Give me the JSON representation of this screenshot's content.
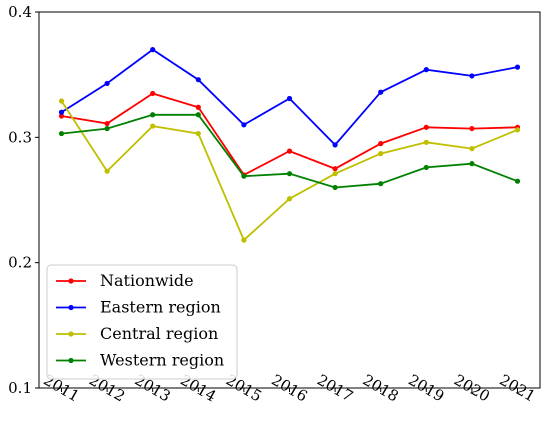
{
  "chart_data": {
    "type": "line",
    "x": [
      "2011",
      "2012",
      "2013",
      "2014",
      "2015",
      "2016",
      "2017",
      "2018",
      "2019",
      "2020",
      "2021"
    ],
    "ylim": [
      0.1,
      0.4
    ],
    "yticks": [
      "0.1",
      "0.2",
      "0.3",
      "0.4"
    ],
    "grid": false,
    "legend_position": "bottom-left",
    "series": [
      {
        "name": "Nationwide",
        "color": "#ff0000",
        "values": [
          0.317,
          0.311,
          0.335,
          0.324,
          0.27,
          0.289,
          0.275,
          0.295,
          0.308,
          0.307,
          0.308
        ]
      },
      {
        "name": "Eastern region",
        "color": "#0000ff",
        "values": [
          0.32,
          0.343,
          0.37,
          0.346,
          0.31,
          0.331,
          0.294,
          0.336,
          0.354,
          0.349,
          0.356
        ]
      },
      {
        "name": "Central region",
        "color": "#bfbf00",
        "values": [
          0.329,
          0.273,
          0.309,
          0.303,
          0.218,
          0.251,
          0.271,
          0.287,
          0.296,
          0.291,
          0.306
        ]
      },
      {
        "name": "Western region",
        "color": "#008000",
        "values": [
          0.303,
          0.307,
          0.318,
          0.318,
          0.269,
          0.271,
          0.26,
          0.263,
          0.276,
          0.279,
          0.265
        ]
      }
    ]
  }
}
